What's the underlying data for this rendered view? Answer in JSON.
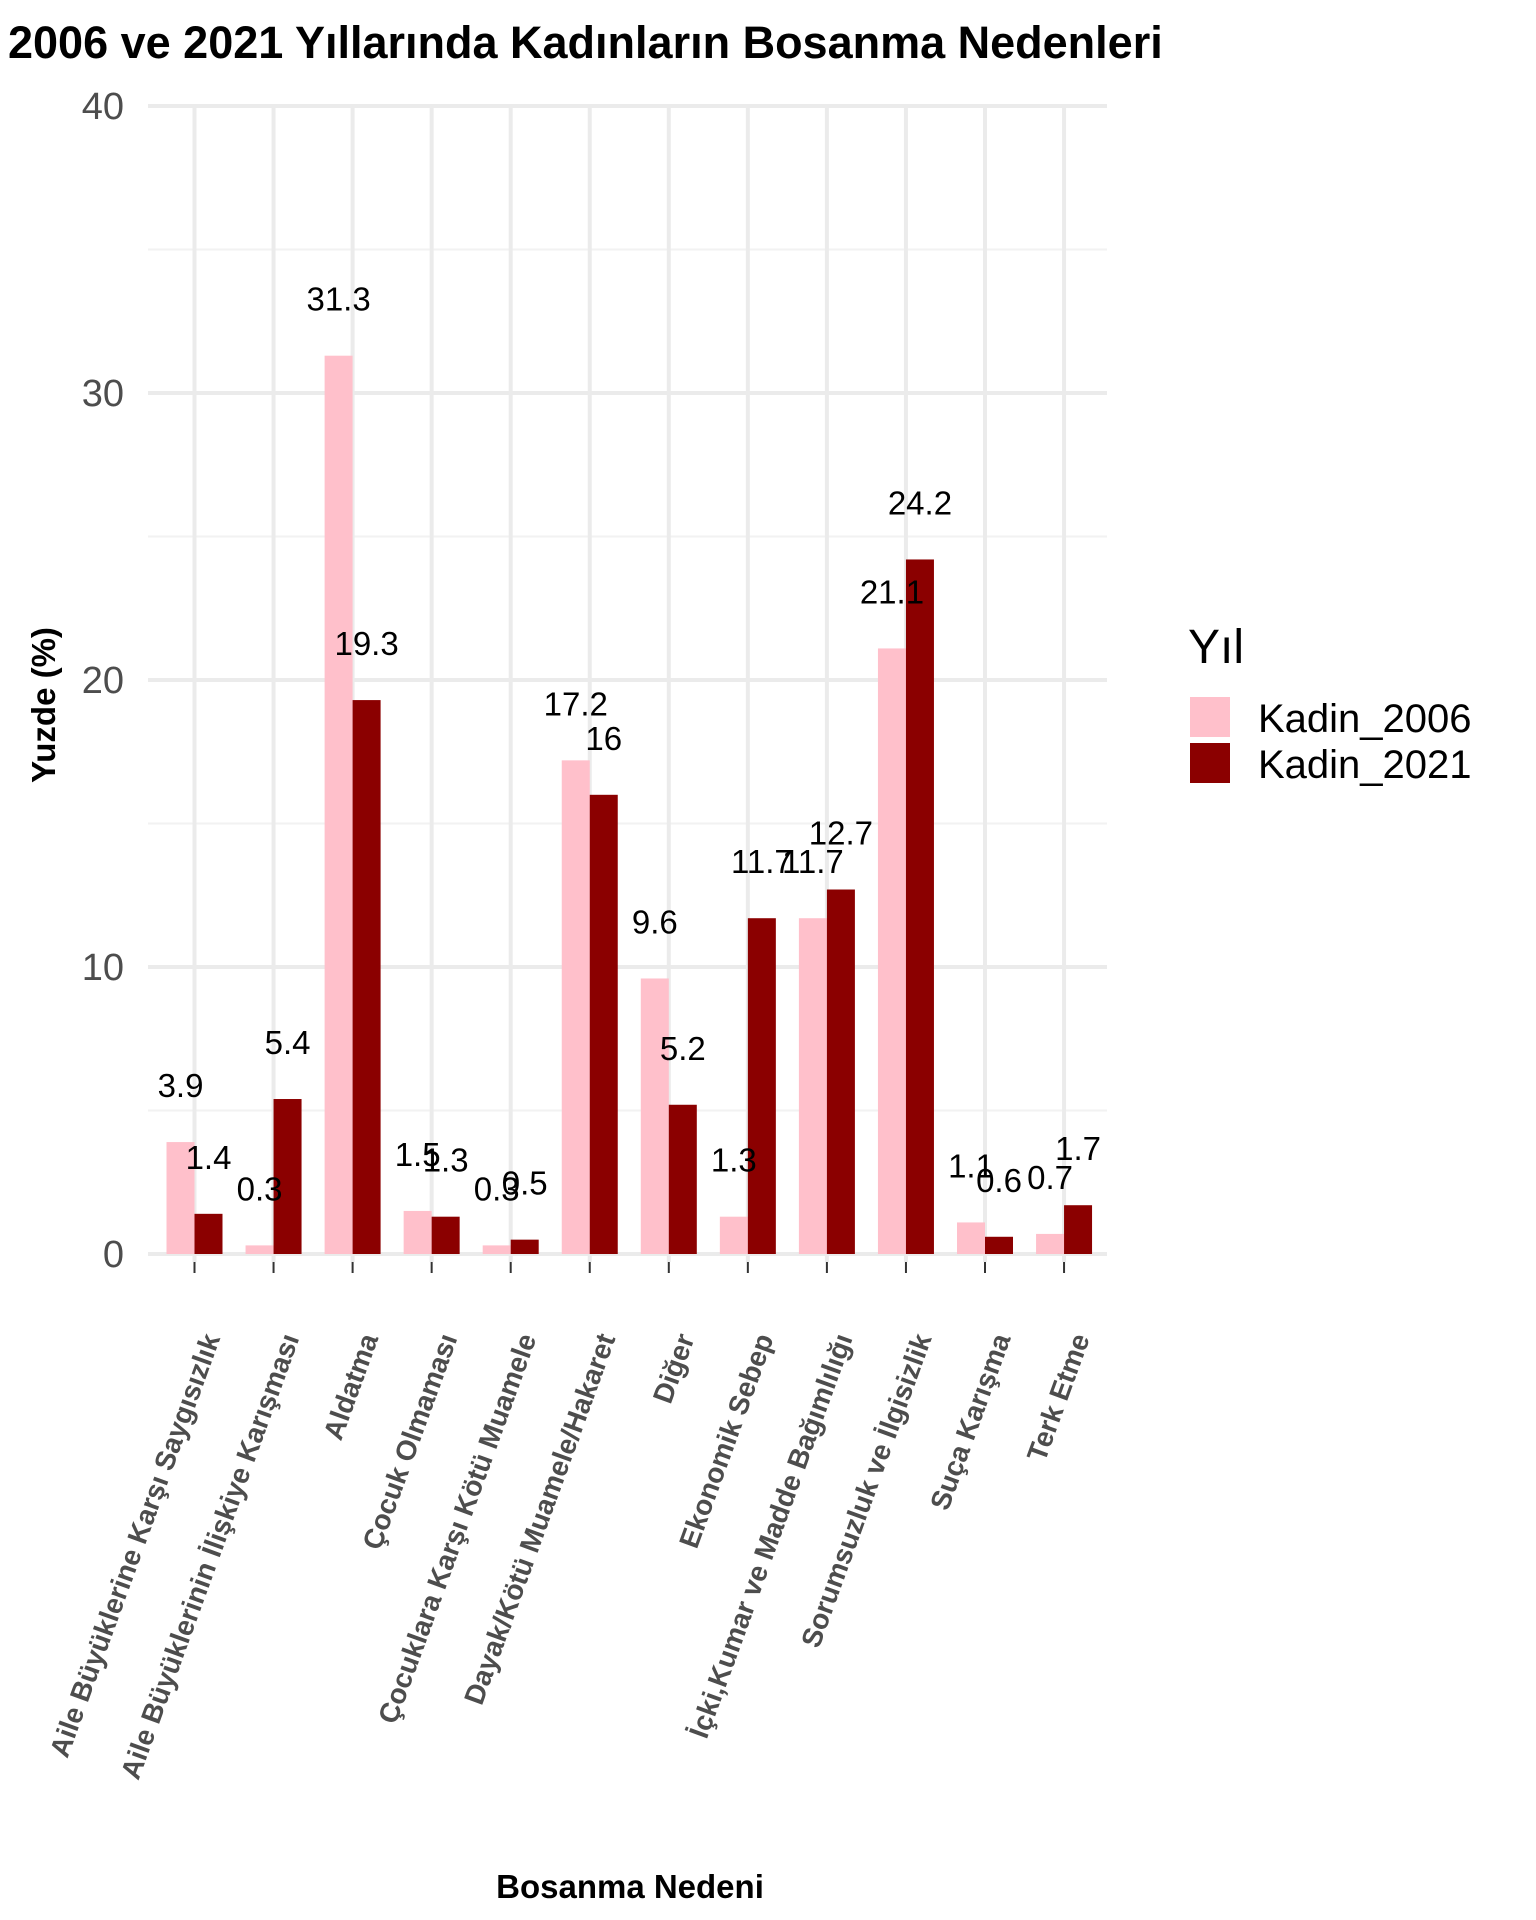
{
  "chart_data": {
    "type": "bar",
    "title": "2006 ve 2021 Yıllarında Kadınların Bosanma Nedenleri",
    "xlabel": "Bosanma Nedeni",
    "ylabel": "Yuzde (%)",
    "ylim": [
      0,
      40
    ],
    "yticks": [
      "0",
      "10",
      "20",
      "30",
      "40"
    ],
    "grid": true,
    "legend": {
      "title": "Yıl",
      "placement": "right"
    },
    "categories": [
      "Aile Büyüklerine Karşı Saygısızlık",
      "Aile Büyüklerinin İlişkiye Karışması",
      "Aldatma",
      "Çocuk Olmaması",
      "Çocuklara Karşı Kötü Muamele",
      "Dayak/Kötü Muamele/Hakaret",
      "Diğer",
      "Ekonomik Sebep",
      "İçki,Kumar ve Madde Bağımlılığı",
      "Sorumsuzluk ve İlgisizlik",
      "Suça Karışma",
      "Terk Etme"
    ],
    "series": [
      {
        "name": "Kadin_2006",
        "color": "#ffc0cb",
        "values": [
          3.9,
          0.3,
          31.3,
          1.5,
          0.3,
          17.2,
          9.6,
          1.3,
          11.7,
          21.1,
          1.1,
          0.7
        ],
        "labels": [
          "3.9",
          "0.3",
          "31.3",
          "1.5",
          "0.3",
          "17.2",
          "9.6",
          "1.3",
          "11.7",
          "21.1",
          "1.1",
          "0.7"
        ]
      },
      {
        "name": "Kadin_2021",
        "color": "#8b0000",
        "values": [
          1.4,
          5.4,
          19.3,
          1.3,
          0.5,
          16,
          5.2,
          11.7,
          12.7,
          24.2,
          0.6,
          1.7
        ],
        "labels": [
          "1.4",
          "5.4",
          "19.3",
          "1.3",
          "0.5",
          "16",
          "5.2",
          "11.7",
          "12.7",
          "24.2",
          "0.6",
          "1.7"
        ]
      }
    ]
  }
}
